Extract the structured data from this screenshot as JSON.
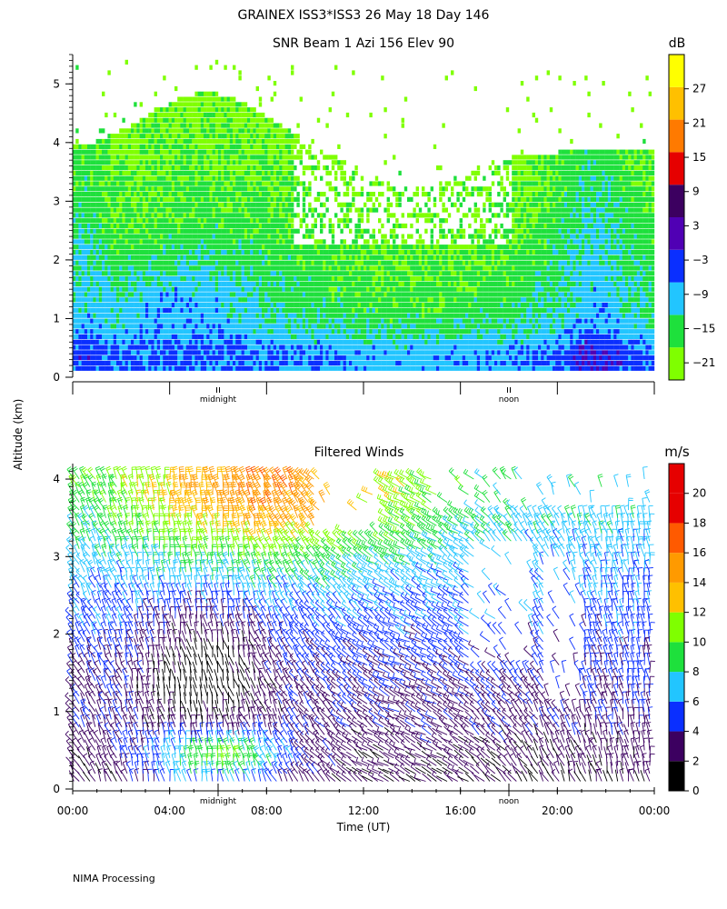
{
  "header": {
    "title": "GRAINEX ISS3*ISS3  26 May 18 Day 146",
    "snr_title": "SNR Beam 1 Azi 156 Elev 90",
    "winds_title": "Filtered Winds"
  },
  "ylabel": "Altitude (km)",
  "xlabel": "Time (UT)",
  "footer": "NIMA Processing",
  "x_tick_labels": [
    "00:00",
    "04:00",
    "08:00",
    "12:00",
    "16:00",
    "20:00",
    "00:00"
  ],
  "markers": {
    "midnight": "midnight",
    "noon": "noon"
  },
  "chart_data": [
    {
      "type": "heatmap",
      "title": "SNR Beam 1 Azi 156 Elev 90",
      "x_range_hours": [
        0,
        24
      ],
      "ylim": [
        0,
        5.5
      ],
      "y_ticks": [
        "0",
        "1",
        "2",
        "3",
        "4",
        "5"
      ],
      "colorbar": {
        "unit": "dB",
        "bins": [
          -24,
          -18,
          -12,
          -6,
          0,
          6,
          12,
          18,
          24,
          30,
          33
        ],
        "tick_labels": [
          "27",
          "21",
          "15",
          "9",
          "3",
          "−3",
          "−9",
          "−15",
          "−21"
        ],
        "colors": [
          "#7fff00",
          "#1ee03c",
          "#22c5ff",
          "#0a2fff",
          "#5000b4",
          "#3c0060",
          "#e60000",
          "#ff7a00",
          "#ffc000",
          "#ffff00"
        ]
      }
    },
    {
      "type": "scatter",
      "title": "Filtered Winds",
      "x_range_hours": [
        0,
        24
      ],
      "ylim": [
        0,
        4.2
      ],
      "y_ticks": [
        "0",
        "1",
        "2",
        "3",
        "4"
      ],
      "colorbar": {
        "unit": "m/s",
        "bins": [
          0,
          2,
          4,
          6,
          8,
          10,
          12,
          14,
          16,
          18,
          20,
          22
        ],
        "tick_labels": [
          "20",
          "18",
          "16",
          "14",
          "12",
          "10",
          "8",
          "6",
          "4",
          "2",
          "0"
        ],
        "colors": [
          "#000000",
          "#3c0060",
          "#0a2fff",
          "#22c5ff",
          "#1ee03c",
          "#7fff00",
          "#ffc000",
          "#ff9a00",
          "#ff5a00",
          "#e60000",
          "#e60000"
        ]
      }
    }
  ]
}
